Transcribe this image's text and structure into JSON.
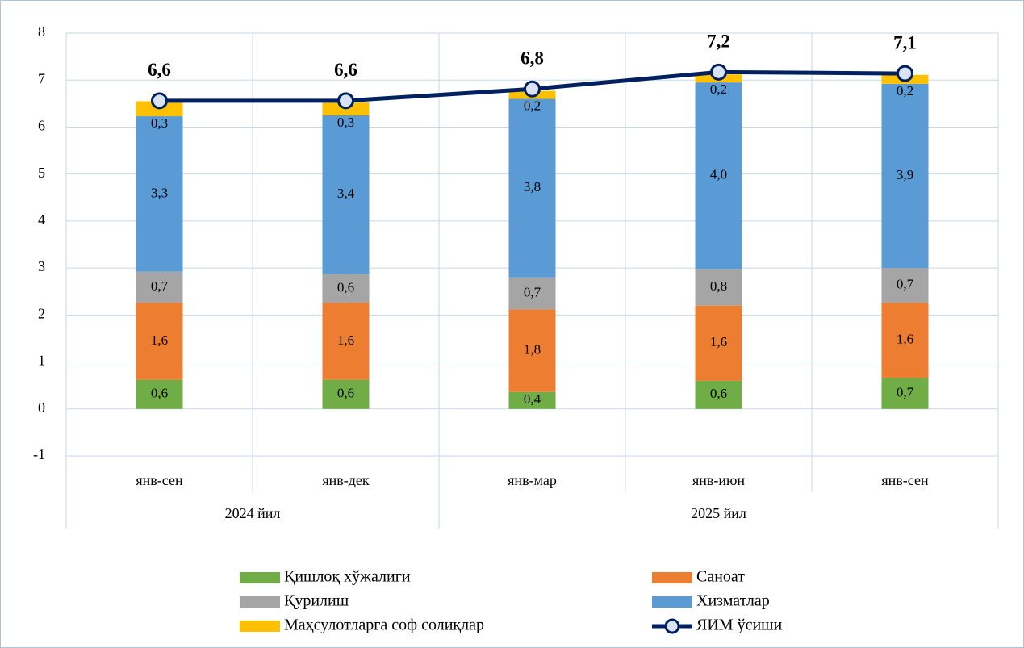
{
  "chart_data": {
    "type": "stacked_bar_line",
    "categories": [
      "янв-сен",
      "янв-дек",
      "янв-мар",
      "янв-июн",
      "янв-сен"
    ],
    "groups": [
      {
        "name": "2024 йил",
        "size": 2
      },
      {
        "name": "2025 йил",
        "size": 3
      }
    ],
    "ylim": [
      -1,
      8
    ],
    "yticks": [
      -1,
      0,
      1,
      2,
      3,
      4,
      5,
      6,
      7,
      8
    ],
    "grid": true,
    "legend": "bottom",
    "series": [
      {
        "name": "Қишлоқ хўжалиги",
        "type": "bar",
        "color": "#70ad47",
        "values": [
          0.62,
          0.62,
          0.36,
          0.6,
          0.66
        ],
        "value_labels": [
          "0,6",
          "0,6",
          "0,4",
          "0,6",
          "0,7"
        ]
      },
      {
        "name": "Саноат",
        "type": "bar",
        "color": "#ed7d31",
        "values": [
          1.64,
          1.64,
          1.76,
          1.6,
          1.6
        ],
        "value_labels": [
          "1,6",
          "1,6",
          "1,8",
          "1,6",
          "1,6"
        ]
      },
      {
        "name": "Қурилиш",
        "type": "bar",
        "color": "#a5a5a5",
        "values": [
          0.66,
          0.61,
          0.68,
          0.78,
          0.74
        ],
        "value_labels": [
          "0,7",
          "0,6",
          "0,7",
          "0,8",
          "0,7"
        ]
      },
      {
        "name": "Хизматлар",
        "type": "bar",
        "color": "#5b9bd5",
        "values": [
          3.31,
          3.38,
          3.8,
          3.97,
          3.92
        ],
        "value_labels": [
          "3,3",
          "3,4",
          "3,8",
          "4,0",
          "3,9"
        ]
      },
      {
        "name": "Маҳсулотларга соф солиқлар",
        "type": "bar",
        "color": "#ffc000",
        "values": [
          0.32,
          0.27,
          0.17,
          0.17,
          0.19
        ],
        "value_labels": [
          "0,3",
          "0,3",
          "0,2",
          "0,2",
          "0,2"
        ]
      },
      {
        "name": "ЯИМ ўсиши",
        "type": "line",
        "color": "#002060",
        "values": [
          6.56,
          6.56,
          6.81,
          7.17,
          7.14
        ],
        "value_labels": [
          "6,6",
          "6,6",
          "6,8",
          "7,2",
          "7,1"
        ]
      }
    ]
  }
}
